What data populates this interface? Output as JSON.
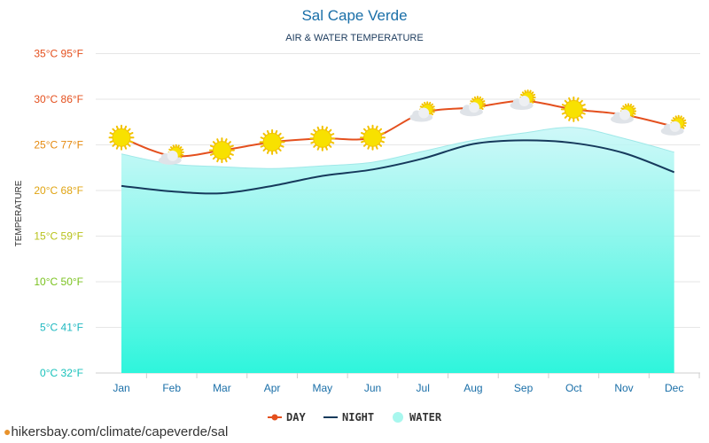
{
  "source_link": "hikersbay.com/climate/capeverde/sal",
  "legend": {
    "day": "DAY",
    "night": "NIGHT",
    "water": "WATER"
  },
  "colors": {
    "day": "#e4501e",
    "night": "#163a5c",
    "water_top": "#c6f7f7",
    "water_bottom": "#2ef5dc",
    "sun": "#f8e100",
    "cloud": "#dfe3e8"
  },
  "chart_data": {
    "type": "line",
    "title": "Sal Cape Verde",
    "subtitle": "AIR & WATER TEMPERATURE",
    "ylabel": "TEMPERATURE",
    "xlabel": "",
    "ylim": [
      0,
      35
    ],
    "grid": true,
    "legend_position": "bottom-center",
    "categories": [
      "Jan",
      "Feb",
      "Mar",
      "Apr",
      "May",
      "Jun",
      "Jul",
      "Aug",
      "Sep",
      "Oct",
      "Nov",
      "Dec"
    ],
    "yticks": [
      {
        "value": 0,
        "label": "0°C 32°F",
        "color": "#19c2bb"
      },
      {
        "value": 5,
        "label": "5°C 41°F",
        "color": "#1fb8c0"
      },
      {
        "value": 10,
        "label": "10°C 50°F",
        "color": "#7ac21f"
      },
      {
        "value": 15,
        "label": "15°C 59°F",
        "color": "#b8c21a"
      },
      {
        "value": 20,
        "label": "20°C 68°F",
        "color": "#e0a412"
      },
      {
        "value": 25,
        "label": "25°C 77°F",
        "color": "#e58a10"
      },
      {
        "value": 30,
        "label": "30°C 86°F",
        "color": "#e4501e"
      },
      {
        "value": 35,
        "label": "35°C 95°F",
        "color": "#e4501e"
      }
    ],
    "series": [
      {
        "name": "DAY",
        "values": [
          25.8,
          23.8,
          24.4,
          25.3,
          25.7,
          25.8,
          28.5,
          29.1,
          29.8,
          28.9,
          28.3,
          27.0
        ]
      },
      {
        "name": "NIGHT",
        "values": [
          20.5,
          19.9,
          19.7,
          20.5,
          21.6,
          22.3,
          23.5,
          25.1,
          25.5,
          25.2,
          24.1,
          22.0
        ]
      },
      {
        "name": "WATER",
        "values": [
          24.0,
          22.9,
          22.6,
          22.4,
          22.7,
          23.1,
          24.3,
          25.5,
          26.3,
          26.9,
          25.7,
          24.2
        ]
      }
    ],
    "weather_icons": [
      "sun",
      "partly-cloudy",
      "sun",
      "sun",
      "sun",
      "sun",
      "partly-cloudy",
      "partly-cloudy",
      "partly-cloudy",
      "sun",
      "partly-cloudy",
      "partly-cloudy"
    ]
  }
}
